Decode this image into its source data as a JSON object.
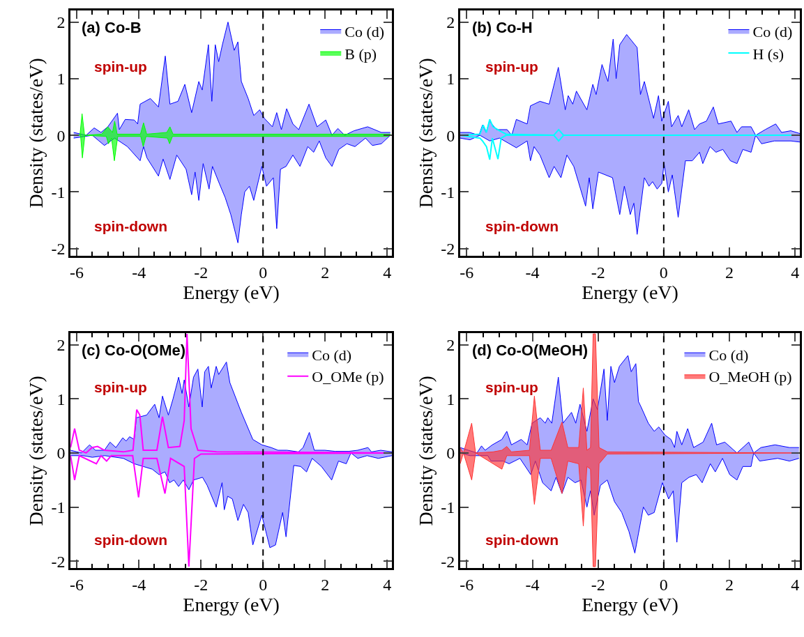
{
  "chart_data": [
    {
      "type": "area",
      "title": "(a) Co-B",
      "xlabel": "Energy (eV)",
      "ylabel": "Density (states/eV)",
      "xlim": [
        -6.2,
        4.15
      ],
      "ylim": [
        -2.13,
        2.21
      ],
      "xticks": [
        -6,
        -4,
        -2,
        0,
        2,
        4
      ],
      "yticks": [
        -2,
        -1,
        0,
        1,
        2
      ],
      "legend": "top right",
      "annotations": [
        "spin-up",
        "spin-down"
      ],
      "ref_lines": [
        {
          "axis": "x",
          "value": 0,
          "color": "#000000",
          "line_style": "dashed"
        }
      ],
      "series": [
        {
          "name": "Co (d)",
          "color": "#0000ff",
          "x": [
            -6.1,
            -5.7,
            -5.44,
            -5.22,
            -5.0,
            -4.69,
            -4.63,
            -4.44,
            -4.15,
            -4.04,
            -3.96,
            -3.63,
            -3.37,
            -3.15,
            -3.0,
            -2.74,
            -2.52,
            -2.3,
            -2.07,
            -1.96,
            -1.76,
            -1.65,
            -1.54,
            -1.43,
            -1.31,
            -1.13,
            -0.93,
            -0.81,
            -0.7,
            -0.48,
            -0.3,
            -0.11,
            0.04,
            0.3,
            0.44,
            0.59,
            0.76,
            0.96,
            1.15,
            1.48,
            1.74,
            2.02,
            2.22,
            2.41,
            2.63,
            2.93,
            3.37,
            3.81,
            4.1
          ],
          "values": [
            0.05,
            0.0,
            0.13,
            0.05,
            0.15,
            0.39,
            0.1,
            0.28,
            0.27,
            0.2,
            0.55,
            0.65,
            0.5,
            1.4,
            0.55,
            0.6,
            0.9,
            0.4,
            0.95,
            0.8,
            1.6,
            0.6,
            1.6,
            1.3,
            1.6,
            2.0,
            1.5,
            1.65,
            0.95,
            0.65,
            0.35,
            0.45,
            0.3,
            0.15,
            0.4,
            0.1,
            0.47,
            0.2,
            0.1,
            0.55,
            0.15,
            0.27,
            0.0,
            0.12,
            0.0,
            0.08,
            0.15,
            0.05,
            0.05
          ]
        },
        {
          "color": "#0000ff",
          "x": [
            -6.1,
            -5.5,
            -5.11,
            -4.78,
            -4.37,
            -3.96,
            -3.85,
            -3.74,
            -3.37,
            -3.22,
            -3.0,
            -2.78,
            -2.48,
            -2.3,
            -2.19,
            -2.07,
            -1.93,
            -1.74,
            -1.63,
            -1.41,
            -1.22,
            -1.04,
            -0.81,
            -0.7,
            -0.59,
            -0.44,
            -0.3,
            -0.04,
            0.11,
            0.33,
            0.44,
            0.56,
            0.74,
            0.96,
            1.19,
            1.44,
            1.63,
            1.81,
            2.02,
            2.22,
            2.44,
            2.7,
            2.96,
            3.3,
            3.52,
            3.81,
            4.1
          ],
          "values": [
            -0.05,
            0.0,
            -0.18,
            -0.05,
            -0.2,
            -0.45,
            -0.2,
            -0.4,
            -0.72,
            -0.42,
            -0.78,
            -0.35,
            -0.6,
            -1.05,
            -0.65,
            -1.15,
            -0.5,
            -0.95,
            -0.55,
            -0.85,
            -1.1,
            -1.4,
            -1.9,
            -1.4,
            -1.0,
            -0.9,
            -1.15,
            -0.55,
            -0.9,
            -0.75,
            -1.65,
            -0.6,
            -0.55,
            -0.35,
            -0.55,
            -0.2,
            -0.3,
            -0.1,
            -0.4,
            -0.55,
            -0.25,
            -0.15,
            -0.2,
            -0.05,
            -0.18,
            -0.15,
            0.0
          ]
        },
        {
          "name": "B (p)",
          "color": "#00ff00",
          "x": [
            -6.1,
            -5.9,
            -5.83,
            -5.75,
            -5.2,
            -5.0,
            -4.85,
            -4.78,
            -4.7,
            -3.95,
            -3.85,
            -3.75,
            -3.1,
            -3.0,
            -2.9,
            0.0,
            4.1
          ],
          "values": [
            0.0,
            0.0,
            0.38,
            0.0,
            0.02,
            0.15,
            0.05,
            0.25,
            0.02,
            0.02,
            0.22,
            0.02,
            0.05,
            0.15,
            0.02,
            0.02,
            0.02
          ]
        },
        {
          "color": "#00fe00",
          "x": [
            -6.05,
            -5.88,
            -5.82,
            -5.74,
            -5.05,
            -4.98,
            -4.88,
            -4.79,
            -4.68,
            -3.94,
            -3.86,
            -3.77,
            -3.08,
            -3.01,
            -2.92,
            0.1,
            4.05
          ],
          "values": [
            0.0,
            0.0,
            -0.4,
            0.0,
            -0.02,
            -0.15,
            -0.05,
            -0.45,
            -0.02,
            -0.02,
            -0.2,
            -0.02,
            -0.05,
            -0.15,
            -0.02,
            -0.02,
            -0.02
          ]
        }
      ]
    },
    {
      "type": "area",
      "title": "(b) Co-H",
      "xlabel": "Energy (eV)",
      "ylabel": "Density (states/eV)",
      "xlim": [
        -6.2,
        4.15
      ],
      "ylim": [
        -2.13,
        2.21
      ],
      "xticks": [
        -6,
        -4,
        -2,
        0,
        2,
        4
      ],
      "yticks": [
        -2,
        -1,
        0,
        1,
        2
      ],
      "legend": "top right",
      "annotations": [
        "spin-up",
        "spin-down"
      ],
      "ref_lines": [
        {
          "axis": "x",
          "value": 0,
          "color": "#000000",
          "line_style": "dashed"
        }
      ],
      "series": [
        {
          "name": "Co (d)",
          "color": "#0000ff",
          "x": [
            -6.2,
            -5.91,
            -5.63,
            -5.52,
            -5.41,
            -5.31,
            -5.09,
            -4.77,
            -4.63,
            -4.49,
            -4.16,
            -4.06,
            -3.77,
            -3.49,
            -3.21,
            -3.0,
            -2.91,
            -2.77,
            -2.66,
            -2.34,
            -2.16,
            -2.06,
            -1.88,
            -1.7,
            -1.54,
            -1.45,
            -1.34,
            -1.13,
            -0.81,
            -0.71,
            -0.59,
            -0.31,
            -0.16,
            -0.06,
            0.14,
            0.24,
            0.44,
            0.55,
            0.76,
            0.94,
            1.09,
            1.3,
            1.51,
            1.66,
            2.05,
            2.23,
            2.37,
            2.66,
            2.8,
            3.09,
            3.41,
            3.59,
            3.87,
            4.15
          ],
          "values": [
            0.05,
            0.05,
            0.0,
            0.18,
            0.05,
            0.25,
            0.1,
            0.1,
            0.0,
            0.28,
            0.2,
            0.52,
            0.6,
            0.55,
            1.2,
            0.45,
            0.7,
            0.55,
            0.78,
            0.45,
            0.9,
            0.72,
            1.25,
            0.95,
            1.7,
            1.0,
            1.6,
            1.78,
            1.55,
            0.72,
            0.95,
            0.3,
            0.7,
            0.25,
            0.6,
            0.15,
            0.35,
            0.15,
            0.45,
            0.1,
            0.2,
            0.25,
            0.5,
            0.2,
            0.25,
            0.05,
            0.15,
            0.15,
            0.0,
            0.1,
            0.2,
            0.05,
            0.08,
            0.03
          ]
        },
        {
          "color": "#0000ff",
          "x": [
            -6.2,
            -5.9,
            -5.6,
            -5.3,
            -5.0,
            -4.49,
            -4.16,
            -4.06,
            -3.95,
            -3.77,
            -3.49,
            -3.34,
            -3.13,
            -2.95,
            -2.74,
            -2.38,
            -2.27,
            -2.16,
            -1.99,
            -1.56,
            -1.34,
            -1.2,
            -1.02,
            -0.91,
            -0.81,
            -0.59,
            -0.45,
            -0.34,
            -0.2,
            -0.06,
            0.01,
            0.14,
            0.26,
            0.44,
            0.66,
            0.87,
            1.09,
            1.19,
            1.41,
            1.59,
            1.8,
            2.03,
            2.23,
            2.41,
            2.66,
            2.8,
            2.98,
            3.37,
            3.87,
            4.15
          ],
          "values": [
            -0.05,
            -0.08,
            0.0,
            -0.1,
            -0.05,
            -0.22,
            -0.1,
            -0.45,
            -0.2,
            -0.35,
            -0.75,
            -0.55,
            -0.75,
            -0.35,
            -0.55,
            -1.25,
            -0.75,
            -1.3,
            -0.65,
            -0.75,
            -1.4,
            -0.9,
            -1.4,
            -1.2,
            -1.75,
            -0.75,
            -0.9,
            -0.82,
            -0.95,
            -0.85,
            -0.5,
            -1.0,
            -0.7,
            -1.45,
            -0.45,
            -0.45,
            -0.3,
            -0.5,
            -0.2,
            -0.3,
            -0.25,
            -0.45,
            -0.5,
            -0.25,
            -0.3,
            0.0,
            -0.15,
            -0.1,
            -0.1,
            -0.12
          ]
        },
        {
          "name": "H (s)",
          "color": "#00ffff",
          "type": "line",
          "x": [
            -6.2,
            -5.6,
            -5.5,
            -5.4,
            -5.3,
            -5.2,
            -5.0,
            -4.8,
            -3.35,
            -3.2,
            -3.05,
            4.15
          ],
          "values": [
            0.0,
            0.02,
            0.18,
            0.05,
            0.28,
            0.15,
            0.08,
            0.02,
            0.0,
            0.1,
            0.0,
            0.0
          ]
        },
        {
          "color": "#00ffff",
          "type": "line",
          "x": [
            -6.2,
            -5.6,
            -5.52,
            -5.4,
            -5.3,
            -5.22,
            -5.05,
            -4.95,
            -4.8,
            -3.35,
            -3.2,
            -3.05,
            4.15
          ],
          "values": [
            0.0,
            -0.05,
            -0.1,
            -0.2,
            -0.43,
            -0.05,
            -0.42,
            -0.05,
            0.0,
            0.0,
            -0.1,
            0.0,
            0.0
          ]
        }
      ]
    },
    {
      "type": "area",
      "title": "(c) Co-O(OMe)",
      "xlabel": "Energy (eV)",
      "ylabel": "Density (states/eV)",
      "xlim": [
        -6.2,
        4.15
      ],
      "ylim": [
        -2.13,
        2.21
      ],
      "xticks": [
        -6,
        -4,
        -2,
        0,
        2,
        4
      ],
      "yticks": [
        -2,
        -1,
        0,
        1,
        2
      ],
      "legend": "top right",
      "annotations": [
        "spin-up",
        "spin-down"
      ],
      "ref_lines": [
        {
          "axis": "x",
          "value": 0,
          "color": "#000000",
          "line_style": "dashed"
        }
      ],
      "series": [
        {
          "name": "Co (d)",
          "color": "#0000ff",
          "x": [
            -6.2,
            -5.85,
            -5.59,
            -5.4,
            -5.11,
            -4.93,
            -4.74,
            -4.52,
            -4.41,
            -4.3,
            -4.15,
            -4.08,
            -3.75,
            -3.49,
            -3.35,
            -3.24,
            -3.05,
            -2.9,
            -2.72,
            -2.61,
            -2.54,
            -2.39,
            -2.24,
            -2.1,
            -1.96,
            -1.88,
            -1.76,
            -1.67,
            -1.51,
            -1.43,
            -1.18,
            -1.07,
            -0.7,
            -0.33,
            -0.04,
            0.26,
            0.48,
            0.77,
            1.14,
            1.29,
            1.49,
            1.65,
            1.99,
            2.32,
            2.76,
            3.05,
            3.38,
            3.49,
            3.79,
            4.15
          ],
          "values": [
            0.05,
            0.0,
            0.15,
            0.05,
            0.05,
            0.2,
            0.1,
            0.28,
            0.22,
            0.3,
            0.25,
            0.65,
            0.7,
            0.9,
            0.65,
            1.05,
            0.7,
            1.0,
            1.4,
            1.1,
            1.35,
            0.85,
            1.4,
            1.55,
            0.85,
            1.5,
            1.6,
            1.2,
            1.6,
            1.45,
            1.68,
            1.3,
            0.75,
            0.25,
            0.15,
            0.1,
            0.05,
            0.05,
            0.02,
            0.1,
            0.38,
            0.05,
            0.05,
            0.03,
            0.03,
            0.05,
            0.1,
            0.02,
            0.05,
            0.02
          ]
        },
        {
          "color": "#0000ff",
          "x": [
            -6.2,
            -5.8,
            -5.5,
            -5.1,
            -4.5,
            -4.15,
            -3.86,
            -3.57,
            -3.35,
            -3.16,
            -3.01,
            -2.87,
            -2.72,
            -2.57,
            -2.39,
            -2.24,
            -1.95,
            -1.8,
            -1.51,
            -1.32,
            -1.25,
            -1.14,
            -0.99,
            -0.81,
            -0.63,
            -0.48,
            -0.33,
            -0.04,
            0.22,
            0.4,
            0.63,
            0.74,
            0.99,
            1.21,
            1.4,
            1.58,
            1.88,
            2.21,
            2.43,
            2.68,
            2.83,
            3.05,
            3.35,
            3.71,
            4.15
          ],
          "values": [
            -0.05,
            -0.05,
            -0.08,
            -0.05,
            -0.1,
            -0.2,
            -0.25,
            -0.3,
            -0.4,
            -0.35,
            -0.55,
            -0.5,
            -0.62,
            -0.5,
            -0.68,
            -0.5,
            -0.45,
            -0.6,
            -1.0,
            -0.55,
            -1.05,
            -0.8,
            -0.85,
            -1.25,
            -0.95,
            -1.1,
            -1.7,
            -1.15,
            -1.75,
            -1.7,
            -1.1,
            -1.55,
            -0.23,
            -0.25,
            -0.35,
            -0.1,
            -0.25,
            -0.5,
            -0.15,
            -0.2,
            0.0,
            -0.1,
            -0.05,
            -0.1,
            -0.05
          ]
        },
        {
          "name": "O_OMe (p)",
          "color": "#ff00ff",
          "type": "line",
          "x": [
            -6.2,
            -6.07,
            -5.92,
            -5.7,
            -5.51,
            -5.33,
            -5.11,
            -4.5,
            -4.19,
            -4.07,
            -3.97,
            -3.86,
            -3.42,
            -3.24,
            -3.05,
            -2.68,
            -2.54,
            -2.45,
            -2.32,
            -2.1,
            -1.5,
            4.15
          ],
          "values": [
            0.1,
            0.45,
            0.05,
            0.0,
            0.1,
            0.12,
            0.05,
            0.02,
            0.05,
            0.8,
            0.7,
            0.05,
            0.05,
            0.67,
            0.1,
            0.12,
            0.6,
            2.2,
            0.45,
            0.05,
            0.02,
            0.0
          ]
        },
        {
          "color": "#ff00ff",
          "type": "line",
          "x": [
            -6.2,
            -6.07,
            -5.92,
            -5.37,
            -5.22,
            -5.04,
            -4.89,
            -4.2,
            -4.01,
            -3.86,
            -3.42,
            -3.16,
            -2.98,
            -2.54,
            -2.39,
            -2.21,
            -2.0,
            4.15
          ],
          "values": [
            -0.05,
            -0.5,
            -0.05,
            -0.2,
            -0.05,
            -0.15,
            -0.05,
            -0.05,
            -0.82,
            -0.1,
            -0.1,
            -0.75,
            -0.1,
            -0.25,
            -2.1,
            -0.1,
            -0.02,
            0.0
          ]
        }
      ]
    },
    {
      "type": "area",
      "title": "(d) Co-O(MeOH)",
      "xlabel": "Energy (eV)",
      "ylabel": "Density (states/eV)",
      "xlim": [
        -6.2,
        4.15
      ],
      "ylim": [
        -2.13,
        2.21
      ],
      "xticks": [
        -6,
        -4,
        -2,
        0,
        2,
        4
      ],
      "yticks": [
        -2,
        -1,
        0,
        1,
        2
      ],
      "legend": "top right",
      "annotations": [
        "spin-up",
        "spin-down"
      ],
      "ref_lines": [
        {
          "axis": "x",
          "value": 0,
          "color": "#000000",
          "line_style": "dashed"
        }
      ],
      "series": [
        {
          "name": "Co (d)",
          "color": "#0000ff",
          "x": [
            -6.2,
            -5.95,
            -5.69,
            -5.55,
            -5.44,
            -5.22,
            -4.93,
            -4.78,
            -4.64,
            -4.34,
            -4.16,
            -4.01,
            -3.76,
            -3.61,
            -3.53,
            -3.41,
            -3.21,
            -3.07,
            -2.81,
            -2.68,
            -2.55,
            -2.34,
            -2.15,
            -2.02,
            -1.82,
            -1.72,
            -1.61,
            -1.5,
            -1.35,
            -1.09,
            -0.99,
            -0.85,
            -0.77,
            -0.69,
            -0.47,
            -0.29,
            -0.15,
            0.04,
            0.22,
            0.33,
            0.4,
            0.55,
            0.73,
            0.91,
            1.2,
            1.46,
            1.61,
            1.86,
            2.23,
            2.59,
            2.74,
            2.96,
            3.39,
            3.83,
            4.12
          ],
          "values": [
            0.1,
            0.05,
            0.0,
            0.13,
            0.05,
            0.15,
            0.25,
            0.4,
            0.15,
            0.25,
            0.15,
            0.55,
            0.65,
            0.55,
            0.65,
            0.55,
            1.4,
            0.55,
            0.75,
            0.55,
            0.9,
            0.4,
            1.0,
            0.8,
            1.55,
            0.6,
            1.6,
            1.3,
            1.6,
            1.8,
            1.5,
            1.65,
            0.95,
            0.85,
            0.55,
            0.4,
            0.48,
            0.33,
            0.25,
            0.1,
            0.4,
            0.15,
            0.45,
            0.1,
            0.2,
            0.55,
            0.15,
            0.2,
            0.0,
            0.2,
            0.0,
            0.1,
            0.15,
            0.1,
            0.1
          ]
        },
        {
          "color": "#0000ff",
          "x": [
            -6.2,
            -5.9,
            -5.36,
            -5.26,
            -4.89,
            -4.71,
            -4.38,
            -4.05,
            -3.91,
            -3.69,
            -3.43,
            -3.28,
            -3.1,
            -2.92,
            -2.7,
            -2.52,
            -2.34,
            -2.23,
            -2.12,
            -1.93,
            -1.72,
            -1.5,
            -1.28,
            -1.06,
            -0.88,
            -0.62,
            -0.47,
            -0.29,
            -0.04,
            0.15,
            0.29,
            0.4,
            0.55,
            0.77,
            0.99,
            1.17,
            1.42,
            1.57,
            1.79,
            2.01,
            2.23,
            2.41,
            2.66,
            2.74,
            2.92,
            3.47,
            3.83,
            4.12
          ],
          "values": [
            0.0,
            -0.05,
            -0.05,
            -0.15,
            -0.15,
            -0.2,
            -0.1,
            -0.4,
            -0.15,
            -0.55,
            -0.7,
            -0.45,
            -0.75,
            -0.45,
            -0.55,
            -0.5,
            -1.0,
            -0.7,
            -1.15,
            -0.6,
            -0.5,
            -0.9,
            -1.1,
            -1.45,
            -1.85,
            -1.0,
            -1.15,
            -1.1,
            -0.55,
            -0.85,
            -0.7,
            -1.65,
            -0.55,
            -0.45,
            -0.4,
            -0.55,
            -0.2,
            -0.35,
            -0.1,
            -0.4,
            -0.5,
            -0.25,
            -0.25,
            0.0,
            -0.15,
            -0.1,
            -0.15,
            -0.1
          ]
        },
        {
          "name": "O_MeOH (p)",
          "color": "#ff3333",
          "x": [
            -6.2,
            -6.1,
            -5.85,
            -5.73,
            -5.2,
            -4.93,
            -4.78,
            -4.64,
            -4.09,
            -3.94,
            -3.76,
            -3.43,
            -3.1,
            -2.92,
            -2.59,
            -2.45,
            -2.34,
            -2.23,
            -2.15,
            -2.08,
            -1.97,
            -1.72,
            4.12
          ],
          "values": [
            0.1,
            0.0,
            0.55,
            0.0,
            0.02,
            0.05,
            0.12,
            0.02,
            0.05,
            1.05,
            0.05,
            0.05,
            0.57,
            0.1,
            0.1,
            1.2,
            0.05,
            0.1,
            2.2,
            2.2,
            0.1,
            0.02,
            0.0
          ]
        },
        {
          "color": "#ff3333",
          "x": [
            -6.2,
            -6.1,
            -5.85,
            -5.73,
            -4.93,
            -4.78,
            -4.09,
            -3.94,
            -3.76,
            -3.43,
            -3.1,
            -2.92,
            -2.59,
            -2.45,
            -2.34,
            -2.23,
            -2.15,
            -2.08,
            -1.97,
            -1.72,
            4.12
          ],
          "values": [
            -0.2,
            0.0,
            -0.5,
            0.0,
            -0.3,
            -0.05,
            -0.05,
            -0.95,
            -0.1,
            -0.1,
            -0.75,
            -0.15,
            -0.2,
            -1.35,
            -0.25,
            -0.3,
            -2.1,
            -2.1,
            -0.2,
            -0.02,
            0.0
          ]
        }
      ]
    }
  ]
}
